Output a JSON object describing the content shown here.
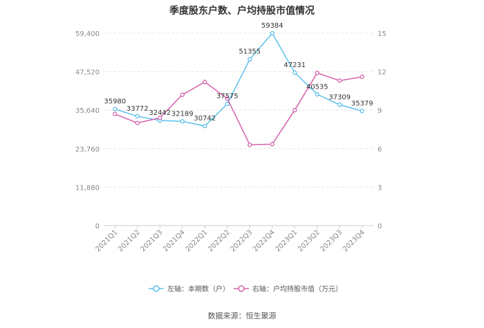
{
  "chart_data": {
    "type": "line",
    "title": "季度股东户数、户均持股市值情况",
    "categories": [
      "2021Q1",
      "2021Q2",
      "2021Q3",
      "2021Q4",
      "2022Q1",
      "2022Q2",
      "2022Q3",
      "2022Q4",
      "2023Q1",
      "2023Q2",
      "2023Q3",
      "2023Q4"
    ],
    "left_axis": {
      "ticks": [
        "0",
        "11,880",
        "23,760",
        "35,640",
        "47,520",
        "59,400"
      ],
      "ylim": [
        0,
        59400
      ]
    },
    "right_axis": {
      "ticks": [
        "0",
        "3",
        "6",
        "9",
        "12",
        "15"
      ],
      "ylim": [
        0,
        15
      ]
    },
    "series": [
      {
        "name": "左轴：本期数（户）",
        "axis": "left",
        "color": "#5bc0eb",
        "values": [
          35980,
          33772,
          32442,
          32189,
          30742,
          37575,
          51355,
          59384,
          47231,
          40535,
          37309,
          35379
        ],
        "labels": [
          "35980",
          "33772",
          "32442",
          "32189",
          "30742",
          "37575",
          "51355",
          "59384",
          "47231",
          "40535",
          "37309",
          "35379"
        ]
      },
      {
        "name": "右轴：户均持股市值（万元）",
        "axis": "right",
        "color": "#d561ab",
        "values": [
          8.7,
          8.0,
          8.4,
          10.2,
          11.2,
          9.9,
          6.3,
          6.35,
          9.0,
          11.9,
          11.3,
          11.6
        ]
      }
    ],
    "grid": true,
    "legend_position": "bottom"
  },
  "source": "数据来源：恒生聚源"
}
